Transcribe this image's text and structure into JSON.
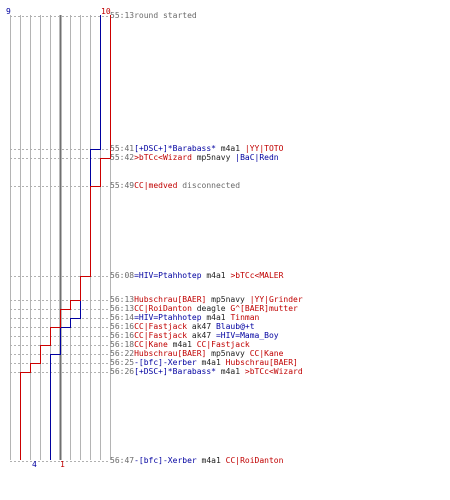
{
  "chart_data": {
    "type": "step-line",
    "title": "",
    "teams": [
      {
        "name": "",
        "color": "#0000a0",
        "start_count": 9,
        "end_count": 4
      },
      {
        "name": "",
        "color": "#cc0000",
        "start_count": 10,
        "end_count": 1
      }
    ],
    "axis_labels": {
      "blue_start": "9",
      "red_start": "10",
      "blue_end": "4",
      "red_end": "1"
    },
    "x_max": 10,
    "time_range": [
      "55:13",
      "56:47"
    ],
    "blue_steps": [
      [
        9,
        "55:13"
      ],
      [
        8,
        "55:41"
      ],
      [
        7,
        "56:08"
      ],
      [
        6,
        "56:14"
      ],
      [
        5,
        "56:16"
      ],
      [
        4,
        "56:22"
      ]
    ],
    "red_steps": [
      [
        10,
        "55:13"
      ],
      [
        9,
        "55:42"
      ],
      [
        8,
        "55:49"
      ],
      [
        7,
        "56:08"
      ],
      [
        6,
        "56:13"
      ],
      [
        5,
        "56:13"
      ],
      [
        4,
        "56:16"
      ],
      [
        3,
        "56:18"
      ],
      [
        2,
        "56:25"
      ],
      [
        1,
        "56:26"
      ]
    ],
    "events": [
      {
        "time": "55:13",
        "parts": [
          {
            "text": "round started",
            "color": "grey"
          }
        ]
      },
      {
        "time": "55:41",
        "parts": [
          {
            "text": "[+DSC+]*Barabass*",
            "color": "blue"
          },
          {
            "text": " m4a1 ",
            "color": "plain"
          },
          {
            "text": "|YY|TOTO",
            "color": "red"
          }
        ]
      },
      {
        "time": "55:42",
        "parts": [
          {
            "text": ">bTCc<Wizard",
            "color": "red"
          },
          {
            "text": " mp5navy ",
            "color": "plain"
          },
          {
            "text": "|BaC|Redn",
            "color": "blue"
          }
        ]
      },
      {
        "time": "55:49",
        "parts": [
          {
            "text": "CC|medved",
            "color": "red"
          },
          {
            "text": " disconnected",
            "color": "grey"
          }
        ]
      },
      {
        "time": "56:08",
        "parts": [
          {
            "text": "=HIV=Ptahhotep",
            "color": "blue"
          },
          {
            "text": " m4a1 ",
            "color": "plain"
          },
          {
            "text": ">bTCc<MALER",
            "color": "red"
          }
        ]
      },
      {
        "time": "56:13",
        "parts": [
          {
            "text": "Hubschrau[BAER]",
            "color": "red"
          },
          {
            "text": " mp5navy ",
            "color": "plain"
          },
          {
            "text": "|YY|Grinder",
            "color": "red"
          }
        ]
      },
      {
        "time": "56:13",
        "parts": [
          {
            "text": "CC|RoiDanton",
            "color": "red"
          },
          {
            "text": " deagle ",
            "color": "plain"
          },
          {
            "text": "G^[BAER]mutter",
            "color": "red"
          }
        ]
      },
      {
        "time": "56:14",
        "parts": [
          {
            "text": "=HIV=Ptahhotep",
            "color": "blue"
          },
          {
            "text": " m4a1 ",
            "color": "plain"
          },
          {
            "text": "Tinman",
            "color": "red"
          }
        ]
      },
      {
        "time": "56:16",
        "parts": [
          {
            "text": "CC|Fastjack",
            "color": "red"
          },
          {
            "text": " ak47 ",
            "color": "plain"
          },
          {
            "text": "Blaub@+t",
            "color": "blue"
          }
        ]
      },
      {
        "time": "56:16",
        "parts": [
          {
            "text": "CC|Fastjack",
            "color": "red"
          },
          {
            "text": " ak47 ",
            "color": "plain"
          },
          {
            "text": "=HIV=Mama_Boy",
            "color": "blue"
          }
        ]
      },
      {
        "time": "56:18",
        "parts": [
          {
            "text": "CC|Kane",
            "color": "red"
          },
          {
            "text": " m4a1 ",
            "color": "plain"
          },
          {
            "text": "CC|Fastjack",
            "color": "red"
          }
        ]
      },
      {
        "time": "56:22",
        "parts": [
          {
            "text": "Hubschrau[BAER]",
            "color": "red"
          },
          {
            "text": " mp5navy ",
            "color": "plain"
          },
          {
            "text": "CC|Kane",
            "color": "red"
          }
        ]
      },
      {
        "time": "56:25",
        "parts": [
          {
            "text": "-[bfc]-Xerber",
            "color": "blue"
          },
          {
            "text": " m4a1 ",
            "color": "plain"
          },
          {
            "text": "Hubschrau[BAER]",
            "color": "red"
          }
        ]
      },
      {
        "time": "56:26",
        "parts": [
          {
            "text": "[+DSC+]*Barabass*",
            "color": "blue"
          },
          {
            "text": " m4a1 ",
            "color": "plain"
          },
          {
            "text": ">bTCc<Wizard",
            "color": "red"
          }
        ]
      },
      {
        "time": "56:47",
        "parts": [
          {
            "text": "-[bfc]-Xerber",
            "color": "blue"
          },
          {
            "text": " m4a1 ",
            "color": "plain"
          },
          {
            "text": "CC|RoiDanton",
            "color": "red"
          }
        ]
      }
    ]
  }
}
